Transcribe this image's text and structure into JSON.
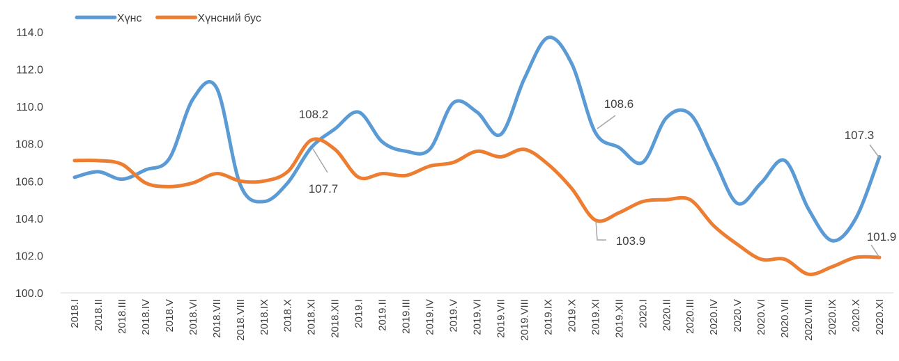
{
  "chart_data": {
    "type": "line",
    "categories": [
      "2018.I",
      "2018.II",
      "2018.III",
      "2018.IV",
      "2018.V",
      "2018.VI",
      "2018.VII",
      "2018.VIII",
      "2018.IX",
      "2018.X",
      "2018.XI",
      "2018.XII",
      "2019.I",
      "2019.II",
      "2019.III",
      "2019.IV",
      "2019.V",
      "2019.VI",
      "2019.VII",
      "2019.VIII",
      "2019.IX",
      "2019.X",
      "2019.XI",
      "2019.XII",
      "2020.I",
      "2020.II",
      "2020.III",
      "2020.IV",
      "2020.V",
      "2020.VI",
      "2020.VII",
      "2020.VIII",
      "2020.IX",
      "2020.X",
      "2020.XI"
    ],
    "series": [
      {
        "name": "Хүнс",
        "color": "#5b9bd5",
        "values": [
          106.2,
          106.5,
          106.1,
          106.6,
          107.2,
          110.4,
          111.0,
          105.8,
          104.9,
          105.9,
          107.8,
          108.8,
          109.7,
          108.1,
          107.6,
          107.7,
          110.2,
          109.7,
          108.5,
          111.5,
          113.7,
          112.3,
          108.6,
          107.8,
          107.0,
          109.4,
          109.6,
          107.2,
          104.8,
          105.9,
          107.1,
          104.5,
          102.8,
          104.0,
          107.3
        ],
        "value_labels": [
          null,
          null,
          null,
          null,
          null,
          null,
          null,
          null,
          null,
          null,
          null,
          null,
          null,
          null,
          null,
          null,
          null,
          null,
          null,
          null,
          null,
          null,
          "108.6",
          null,
          null,
          null,
          null,
          null,
          null,
          null,
          null,
          null,
          null,
          null,
          "107.3"
        ]
      },
      {
        "name": "Хүнсний бус",
        "color": "#ed7d31",
        "values": [
          107.1,
          107.1,
          106.9,
          105.9,
          105.7,
          105.9,
          106.4,
          106.0,
          106.0,
          106.5,
          108.2,
          107.7,
          106.2,
          106.4,
          106.3,
          106.8,
          107.0,
          107.6,
          107.3,
          107.7,
          106.9,
          105.6,
          103.9,
          104.3,
          104.9,
          105.0,
          105.0,
          103.6,
          102.6,
          101.8,
          101.8,
          101.0,
          101.4,
          101.9,
          101.9
        ],
        "value_labels": [
          null,
          null,
          null,
          null,
          null,
          null,
          null,
          null,
          null,
          null,
          "108.2",
          "107.7",
          null,
          null,
          null,
          null,
          null,
          null,
          null,
          null,
          null,
          null,
          "103.9",
          null,
          null,
          null,
          null,
          null,
          null,
          null,
          null,
          null,
          null,
          null,
          "101.9"
        ]
      }
    ],
    "ylim": [
      100,
      114
    ],
    "yticks": [
      {
        "value": 100,
        "label": "100.0"
      },
      {
        "value": 102,
        "label": "102.0"
      },
      {
        "value": 104,
        "label": "104.0"
      },
      {
        "value": 106,
        "label": "106.0"
      },
      {
        "value": 108,
        "label": "108.0"
      },
      {
        "value": 110,
        "label": "110.0"
      },
      {
        "value": 112,
        "label": "112.0"
      },
      {
        "value": 114,
        "label": "114.0"
      }
    ],
    "legend": "top-left",
    "grid": false
  }
}
